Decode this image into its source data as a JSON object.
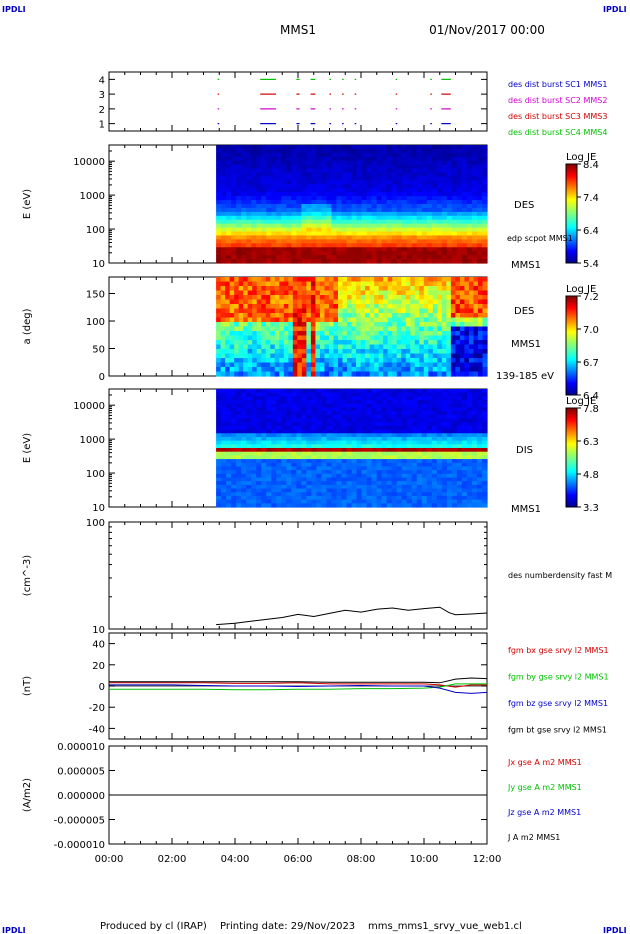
{
  "header": {
    "corner_label": "IPDLI",
    "spacecraft": "MMS1",
    "datetime": "01/Nov/2017 00:00"
  },
  "footer": {
    "produced_by": "Produced by cl (IRAP)",
    "printing_date": "Printing date: 29/Nov/2023",
    "filename": "mms_mms1_srvy_vue_web1.cl"
  },
  "time_axis": {
    "ticks": [
      "00:00",
      "02:00",
      "04:00",
      "06:00",
      "08:00",
      "10:00",
      "12:00"
    ],
    "range_hours": [
      0,
      12
    ],
    "data_start_hours": 3.4
  },
  "colors": {
    "blue": "#0000c8",
    "magenta": "#d000d0",
    "red": "#d00000",
    "green": "#00c000",
    "black": "#000000"
  },
  "chart_data": [
    {
      "id": "burst",
      "type": "scatter",
      "yticks": [
        "1",
        "2",
        "3",
        "4"
      ],
      "legend": [
        {
          "label": "des dist burst SC1 MMS1",
          "color": "#0000c8"
        },
        {
          "label": "des dist burst SC2 MMS2",
          "color": "#d000d0"
        },
        {
          "label": "des dist burst SC3 MMS3",
          "color": "#d00000"
        },
        {
          "label": "des dist burst SC4 MMS4",
          "color": "#00c000"
        }
      ],
      "segments_hours": [
        [
          3.45,
          3.5
        ],
        [
          4.8,
          5.3
        ],
        [
          5.95,
          6.05
        ],
        [
          6.4,
          6.55
        ],
        [
          7.0,
          7.05
        ],
        [
          7.4,
          7.45
        ],
        [
          7.8,
          7.85
        ],
        [
          9.1,
          9.15
        ],
        [
          10.2,
          10.25
        ],
        [
          10.55,
          10.85
        ]
      ]
    },
    {
      "id": "des-energy",
      "type": "heatmap",
      "ylabel": "E (eV)",
      "yticks": [
        "10",
        "100",
        "1000",
        "10000"
      ],
      "ylog": [
        10,
        30000
      ],
      "side_labels": [
        "DES",
        "edp scpot MMS1",
        "MMS1"
      ],
      "colorbar": {
        "title": "Log JE",
        "ticks": [
          "5.4",
          "6.4",
          "7.4",
          "8.4"
        ]
      }
    },
    {
      "id": "des-pitch",
      "type": "heatmap",
      "ylabel": "a (deg)",
      "yticks": [
        "0",
        "50",
        "100",
        "150"
      ],
      "ylim": [
        0,
        180
      ],
      "side_labels": [
        "DES",
        "MMS1",
        "139-185 eV"
      ],
      "colorbar": {
        "title": "Log JE",
        "ticks": [
          "6.4",
          "6.7",
          "7.0",
          "7.2"
        ]
      }
    },
    {
      "id": "dis-energy",
      "type": "heatmap",
      "ylabel": "E (eV)",
      "yticks": [
        "10",
        "100",
        "1000",
        "10000"
      ],
      "ylog": [
        10,
        30000
      ],
      "side_labels": [
        "DIS",
        "MMS1"
      ],
      "colorbar": {
        "title": "Log JE",
        "ticks": [
          "3.3",
          "4.8",
          "6.3",
          "7.8"
        ]
      }
    },
    {
      "id": "density",
      "type": "line",
      "ylabel": "(cm^-3)",
      "yticks": [
        "10",
        "100"
      ],
      "ylog": [
        10,
        100
      ],
      "legend": [
        {
          "label": "des numberdensity fast M",
          "color": "#000000"
        }
      ],
      "x": [
        3.4,
        4.0,
        4.5,
        5.0,
        5.5,
        6.0,
        6.5,
        7.0,
        7.5,
        8.0,
        8.5,
        9.0,
        9.5,
        10.0,
        10.5,
        10.8,
        11.0,
        11.5,
        12.0
      ],
      "y": [
        11.0,
        11.3,
        11.8,
        12.3,
        12.8,
        13.7,
        13.1,
        14.0,
        15.0,
        14.4,
        15.3,
        15.7,
        15.0,
        15.5,
        16.0,
        14.2,
        13.6,
        13.8,
        14.1
      ]
    },
    {
      "id": "field",
      "type": "line",
      "ylabel": "(nT)",
      "yticks": [
        "-40",
        "-20",
        "0",
        "20",
        "40"
      ],
      "ylim": [
        -50,
        50
      ],
      "legend": [
        {
          "label": "fgm bx gse srvy l2 MMS1",
          "color": "#d00000"
        },
        {
          "label": "fgm by gse srvy l2 MMS1",
          "color": "#00c000"
        },
        {
          "label": "fgm bz gse srvy l2 MMS1",
          "color": "#0000c8"
        },
        {
          "label": "fgm bt gse srvy l2 MMS1",
          "color": "#000000"
        }
      ],
      "x": [
        0,
        1,
        2,
        3,
        4,
        5,
        6,
        7,
        8,
        9,
        10,
        10.5,
        11,
        11.5,
        12
      ],
      "series": [
        {
          "values": [
            3,
            3,
            3,
            3,
            2.5,
            2.5,
            3,
            2,
            2,
            2,
            2,
            1,
            -1,
            1,
            1
          ]
        },
        {
          "values": [
            -3,
            -3,
            -3,
            -3,
            -3.5,
            -3.5,
            -3,
            -3,
            -2.5,
            -2.5,
            -2,
            -1,
            2,
            2,
            2
          ]
        },
        {
          "values": [
            1,
            1,
            1,
            0.5,
            0,
            0,
            -0.5,
            0,
            0.5,
            0,
            0,
            -2,
            -6,
            -7,
            -6
          ]
        },
        {
          "values": [
            4,
            4,
            4,
            4,
            4,
            4,
            4,
            3.5,
            3.5,
            3.5,
            3.5,
            3,
            6.5,
            7.5,
            7
          ]
        }
      ]
    },
    {
      "id": "current",
      "type": "line",
      "ylabel": "(A/m2)",
      "yticks": [
        "-0.000010",
        "-0.000005",
        "0.000000",
        "0.000005",
        "0.000010"
      ],
      "ylim": [
        -1e-05,
        1e-05
      ],
      "legend": [
        {
          "label": "Jx gse A m2 MMS1",
          "color": "#d00000"
        },
        {
          "label": "Jy gse A m2 MMS1",
          "color": "#00c000"
        },
        {
          "label": "Jz gse A m2 MMS1",
          "color": "#0000c8"
        },
        {
          "label": "J A m2 MMS1",
          "color": "#000000"
        }
      ],
      "x": [
        0,
        12
      ],
      "y": [
        0,
        0
      ]
    }
  ]
}
